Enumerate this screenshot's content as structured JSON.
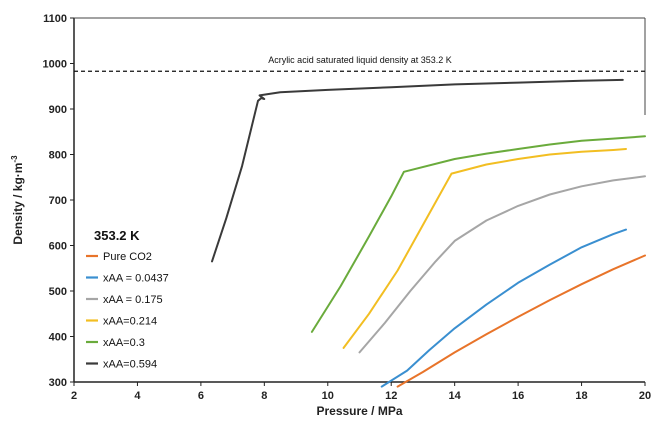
{
  "chart_data": {
    "type": "line",
    "xlabel": "Pressure / MPa",
    "ylabel": "Density / kg·m",
    "ylabel_sup": "-3",
    "xlim": [
      2,
      20
    ],
    "ylim": [
      300,
      1100
    ],
    "xticks": [
      "2",
      "4",
      "6",
      "8",
      "10",
      "12",
      "14",
      "16",
      "18",
      "20"
    ],
    "yticks": [
      "300",
      "400",
      "500",
      "600",
      "700",
      "800",
      "900",
      "1000",
      "1100"
    ],
    "annotation": {
      "text": "Acrylic acid saturated liquid density at 353.2 K",
      "y": 983
    },
    "legend_title": "353.2 K",
    "legend_position": "left",
    "series": [
      {
        "name": "Pure CO2",
        "color": "#e8742a",
        "x": [
          12.2,
          13,
          14,
          15,
          16,
          17,
          18,
          19,
          20
        ],
        "y": [
          290,
          322,
          365,
          405,
          443,
          480,
          515,
          548,
          578
        ]
      },
      {
        "name": "xAA = 0.0437",
        "color": "#3a8fd0",
        "x": [
          11.7,
          12.5,
          13.2,
          14,
          15,
          16,
          17,
          18,
          19,
          19.4
        ],
        "y": [
          290,
          325,
          370,
          418,
          470,
          518,
          558,
          596,
          625,
          635
        ]
      },
      {
        "name": "xAA = 0.175",
        "color": "#a6a6a6",
        "x": [
          11,
          11.8,
          12.6,
          13.4,
          14,
          15,
          16,
          17,
          18,
          19,
          20
        ],
        "y": [
          365,
          430,
          500,
          565,
          610,
          655,
          687,
          712,
          730,
          743,
          752
        ]
      },
      {
        "name": "xAA=0.214",
        "color": "#f2be22",
        "x": [
          10.5,
          11.3,
          12.2,
          13,
          13.9,
          15,
          16,
          17,
          18,
          19,
          19.4
        ],
        "y": [
          375,
          450,
          545,
          645,
          758,
          778,
          790,
          800,
          806,
          810,
          812
        ]
      },
      {
        "name": "xAA=0.3",
        "color": "#6aab3c",
        "x": [
          9.5,
          10.4,
          11.3,
          12,
          12.4,
          14,
          15,
          16,
          17,
          18,
          19,
          20
        ],
        "y": [
          410,
          510,
          620,
          708,
          762,
          790,
          802,
          812,
          822,
          830,
          835,
          840
        ]
      },
      {
        "name": "xAA=0.594",
        "color": "#3a3a3a",
        "x": [
          6.35,
          6.8,
          7.3,
          7.8,
          7.9,
          8.0,
          7.85,
          8.5,
          10,
          12,
          14,
          16,
          18,
          19.3
        ],
        "y": [
          565,
          660,
          775,
          918,
          924,
          922,
          930,
          937,
          942,
          948,
          954,
          958,
          962,
          964
        ]
      }
    ]
  }
}
